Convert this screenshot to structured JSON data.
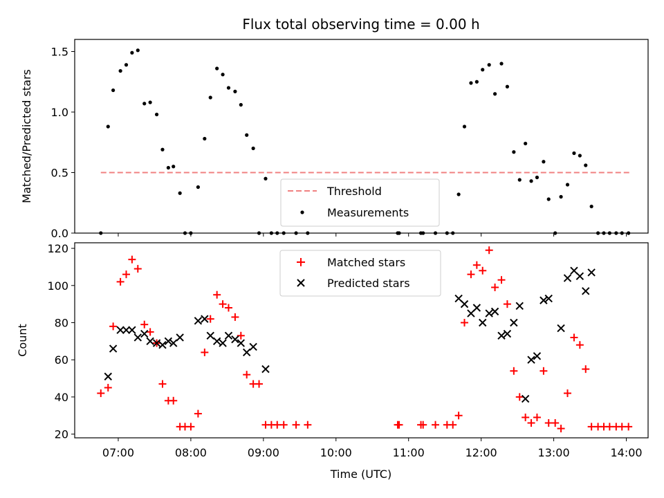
{
  "title": "Flux total observing time = 0.00 h",
  "xlabel": "Time (UTC)",
  "x_ticks": [
    "07:00",
    "08:00",
    "09:00",
    "10:00",
    "11:00",
    "12:00",
    "13:00",
    "14:00"
  ],
  "colors": {
    "threshold": "#f08080",
    "measurements": "#000000",
    "matched": "#ff0000",
    "predicted": "#000000"
  },
  "chart_data": [
    {
      "type": "scatter",
      "ylabel": "Matched/Predicted stars",
      "ylim": [
        0,
        1.6
      ],
      "y_ticks": [
        "0.0",
        "0.5",
        "1.0",
        "1.5"
      ],
      "x_unit": "hours UTC",
      "xlim": [
        6.4,
        14.3
      ],
      "legend": {
        "position": "lower center",
        "entries": [
          "Threshold",
          "Measurements"
        ]
      },
      "threshold": {
        "name": "Threshold",
        "y": 0.5,
        "x_range": [
          6.76,
          14.04
        ],
        "style": "dashed"
      },
      "series": [
        {
          "name": "Measurements",
          "points": [
            [
              6.76,
              0.0
            ],
            [
              6.86,
              0.88
            ],
            [
              6.93,
              1.18
            ],
            [
              7.03,
              1.34
            ],
            [
              7.11,
              1.39
            ],
            [
              7.19,
              1.49
            ],
            [
              7.27,
              1.51
            ],
            [
              7.36,
              1.07
            ],
            [
              7.44,
              1.08
            ],
            [
              7.53,
              0.98
            ],
            [
              7.61,
              0.69
            ],
            [
              7.69,
              0.54
            ],
            [
              7.76,
              0.55
            ],
            [
              7.85,
              0.33
            ],
            [
              7.92,
              0.0
            ],
            [
              8.0,
              0.0
            ],
            [
              8.1,
              0.38
            ],
            [
              8.19,
              0.78
            ],
            [
              8.27,
              1.12
            ],
            [
              8.36,
              1.36
            ],
            [
              8.44,
              1.31
            ],
            [
              8.52,
              1.2
            ],
            [
              8.61,
              1.17
            ],
            [
              8.69,
              1.06
            ],
            [
              8.77,
              0.81
            ],
            [
              8.86,
              0.7
            ],
            [
              8.94,
              0.0
            ],
            [
              9.03,
              0.45
            ],
            [
              9.11,
              0.0
            ],
            [
              9.19,
              0.0
            ],
            [
              9.28,
              0.0
            ],
            [
              9.45,
              0.0
            ],
            [
              9.61,
              0.0
            ],
            [
              10.85,
              0.0
            ],
            [
              10.87,
              0.0
            ],
            [
              11.17,
              0.0
            ],
            [
              11.2,
              0.0
            ],
            [
              11.37,
              0.0
            ],
            [
              11.53,
              0.0
            ],
            [
              11.61,
              0.0
            ],
            [
              11.69,
              0.32
            ],
            [
              11.77,
              0.88
            ],
            [
              11.86,
              1.24
            ],
            [
              11.94,
              1.25
            ],
            [
              12.02,
              1.35
            ],
            [
              12.11,
              1.39
            ],
            [
              12.19,
              1.15
            ],
            [
              12.28,
              1.4
            ],
            [
              12.36,
              1.21
            ],
            [
              12.45,
              0.67
            ],
            [
              12.53,
              0.44
            ],
            [
              12.61,
              0.74
            ],
            [
              12.69,
              0.43
            ],
            [
              12.77,
              0.46
            ],
            [
              12.86,
              0.59
            ],
            [
              12.93,
              0.28
            ],
            [
              13.02,
              0.0
            ],
            [
              13.1,
              0.3
            ],
            [
              13.19,
              0.4
            ],
            [
              13.28,
              0.66
            ],
            [
              13.36,
              0.64
            ],
            [
              13.44,
              0.56
            ],
            [
              13.52,
              0.22
            ],
            [
              13.61,
              0.0
            ],
            [
              13.69,
              0.0
            ],
            [
              13.77,
              0.0
            ],
            [
              13.86,
              0.0
            ],
            [
              13.94,
              0.0
            ],
            [
              14.03,
              0.0
            ]
          ]
        }
      ]
    },
    {
      "type": "scatter",
      "ylabel": "Count",
      "ylim": [
        18,
        123
      ],
      "y_ticks": [
        "20",
        "40",
        "60",
        "80",
        "100",
        "120"
      ],
      "x_unit": "hours UTC",
      "xlim": [
        6.4,
        14.3
      ],
      "legend": {
        "position": "upper center",
        "entries": [
          "Matched stars",
          "Predicted stars"
        ]
      },
      "series": [
        {
          "name": "Matched stars",
          "marker": "+",
          "points": [
            [
              6.76,
              42
            ],
            [
              6.86,
              45
            ],
            [
              6.93,
              78
            ],
            [
              7.03,
              102
            ],
            [
              7.11,
              106
            ],
            [
              7.19,
              114
            ],
            [
              7.27,
              109
            ],
            [
              7.36,
              79
            ],
            [
              7.44,
              75
            ],
            [
              7.53,
              69
            ],
            [
              7.61,
              47
            ],
            [
              7.69,
              38
            ],
            [
              7.76,
              38
            ],
            [
              7.85,
              24
            ],
            [
              7.92,
              24
            ],
            [
              8.0,
              24
            ],
            [
              8.1,
              31
            ],
            [
              8.19,
              64
            ],
            [
              8.27,
              82
            ],
            [
              8.36,
              95
            ],
            [
              8.44,
              90
            ],
            [
              8.52,
              88
            ],
            [
              8.61,
              83
            ],
            [
              8.69,
              73
            ],
            [
              8.77,
              52
            ],
            [
              8.86,
              47
            ],
            [
              8.94,
              47
            ],
            [
              9.03,
              25
            ],
            [
              9.11,
              25
            ],
            [
              9.19,
              25
            ],
            [
              9.28,
              25
            ],
            [
              9.45,
              25
            ],
            [
              9.61,
              25
            ],
            [
              10.85,
              25
            ],
            [
              10.87,
              25
            ],
            [
              11.17,
              25
            ],
            [
              11.2,
              25
            ],
            [
              11.37,
              25
            ],
            [
              11.53,
              25
            ],
            [
              11.61,
              25
            ],
            [
              11.69,
              30
            ],
            [
              11.77,
              80
            ],
            [
              11.86,
              106
            ],
            [
              11.94,
              111
            ],
            [
              12.02,
              108
            ],
            [
              12.11,
              119
            ],
            [
              12.19,
              99
            ],
            [
              12.28,
              103
            ],
            [
              12.36,
              90
            ],
            [
              12.45,
              54
            ],
            [
              12.53,
              40
            ],
            [
              12.61,
              29
            ],
            [
              12.69,
              26
            ],
            [
              12.77,
              29
            ],
            [
              12.86,
              54
            ],
            [
              12.93,
              26
            ],
            [
              13.02,
              26
            ],
            [
              13.1,
              23
            ],
            [
              13.19,
              42
            ],
            [
              13.28,
              72
            ],
            [
              13.36,
              68
            ],
            [
              13.44,
              55
            ],
            [
              13.52,
              24
            ],
            [
              13.61,
              24
            ],
            [
              13.69,
              24
            ],
            [
              13.77,
              24
            ],
            [
              13.86,
              24
            ],
            [
              13.94,
              24
            ],
            [
              14.03,
              24
            ]
          ]
        },
        {
          "name": "Predicted stars",
          "marker": "x",
          "points": [
            [
              6.86,
              51
            ],
            [
              6.93,
              66
            ],
            [
              7.03,
              76
            ],
            [
              7.11,
              76
            ],
            [
              7.19,
              76
            ],
            [
              7.27,
              72
            ],
            [
              7.36,
              74
            ],
            [
              7.44,
              70
            ],
            [
              7.53,
              69
            ],
            [
              7.61,
              68
            ],
            [
              7.69,
              70
            ],
            [
              7.76,
              69
            ],
            [
              7.85,
              72
            ],
            [
              8.1,
              81
            ],
            [
              8.19,
              82
            ],
            [
              8.27,
              73
            ],
            [
              8.36,
              70
            ],
            [
              8.44,
              69
            ],
            [
              8.52,
              73
            ],
            [
              8.61,
              71
            ],
            [
              8.69,
              69
            ],
            [
              8.77,
              64
            ],
            [
              8.86,
              67
            ],
            [
              9.03,
              55
            ],
            [
              11.69,
              93
            ],
            [
              11.77,
              90
            ],
            [
              11.86,
              85
            ],
            [
              11.94,
              88
            ],
            [
              12.02,
              80
            ],
            [
              12.11,
              85
            ],
            [
              12.19,
              86
            ],
            [
              12.28,
              73
            ],
            [
              12.36,
              74
            ],
            [
              12.45,
              80
            ],
            [
              12.53,
              89
            ],
            [
              12.61,
              39
            ],
            [
              12.69,
              60
            ],
            [
              12.77,
              62
            ],
            [
              12.86,
              92
            ],
            [
              12.93,
              93
            ],
            [
              13.1,
              77
            ],
            [
              13.19,
              104
            ],
            [
              13.28,
              108
            ],
            [
              13.36,
              105
            ],
            [
              13.44,
              97
            ],
            [
              13.52,
              107
            ]
          ]
        }
      ]
    }
  ]
}
